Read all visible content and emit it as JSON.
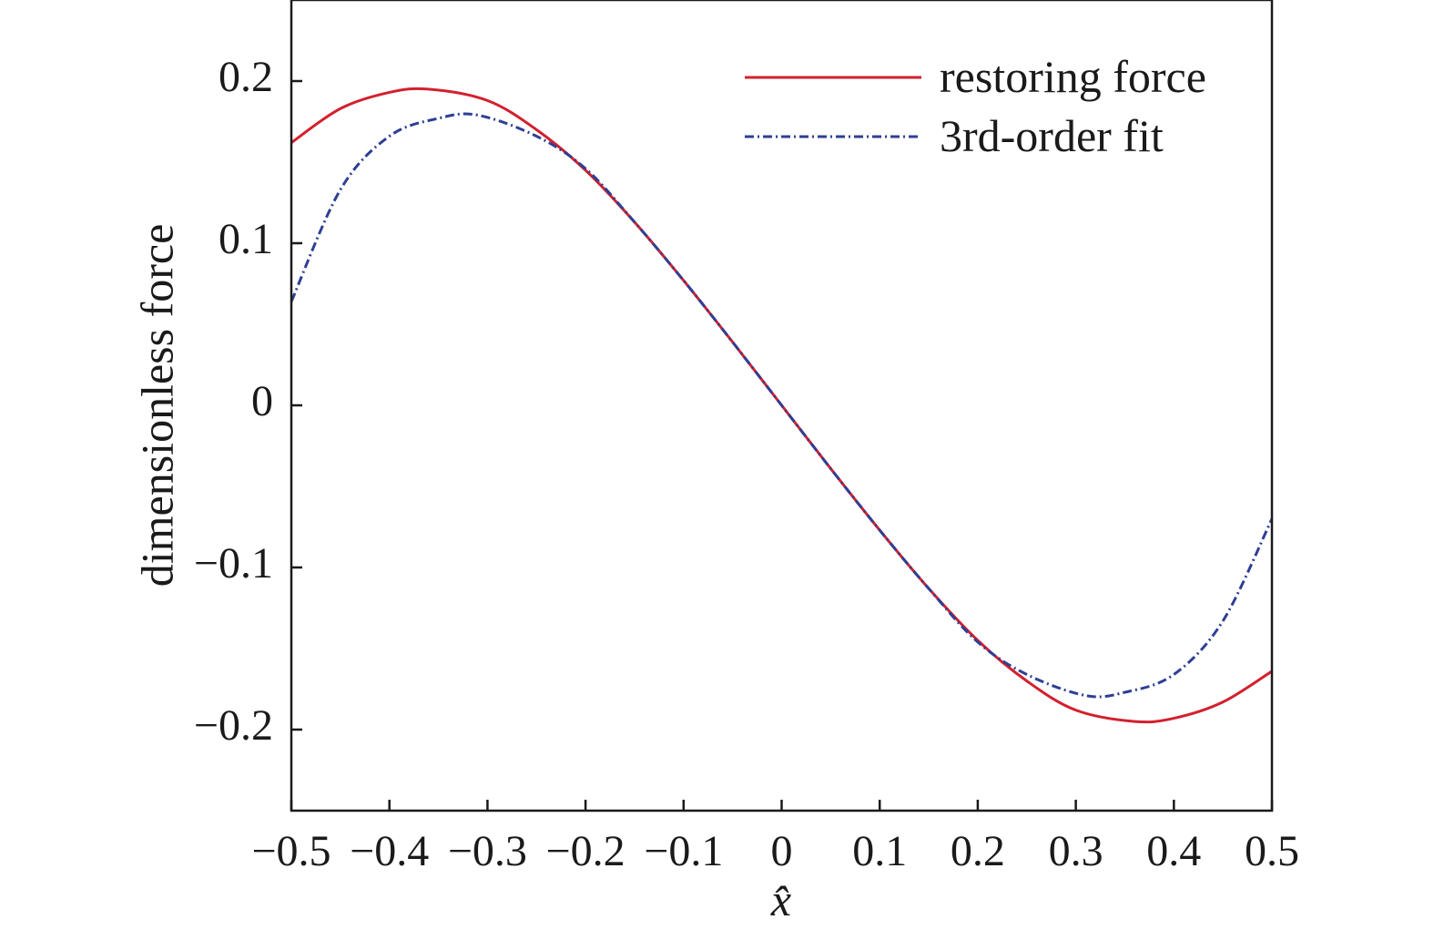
{
  "chart_data": {
    "type": "line",
    "xlabel": "x̂",
    "ylabel": "dimensionless force",
    "xlim": [
      -0.5,
      0.5
    ],
    "ylim": [
      -0.25,
      0.25
    ],
    "xticks": [
      -0.5,
      -0.4,
      -0.3,
      -0.2,
      -0.1,
      0,
      0.1,
      0.2,
      0.3,
      0.4,
      0.5
    ],
    "xtick_labels": [
      "−0.5",
      "−0.4",
      "−0.3",
      "−0.2",
      "−0.1",
      "0",
      "0.1",
      "0.2",
      "0.3",
      "0.4",
      "0.5"
    ],
    "yticks": [
      -0.2,
      -0.1,
      0,
      0.1,
      0.2
    ],
    "ytick_labels": [
      "−0.2",
      "−0.1",
      "0",
      "0.1",
      "0.2"
    ],
    "grid": false,
    "legend_position": "top-right",
    "series": [
      {
        "name": "restoring force",
        "color": "#d3202e",
        "dash": "solid",
        "x": [
          -0.5,
          -0.45,
          -0.4,
          -0.36,
          -0.3,
          -0.25,
          -0.2,
          -0.15,
          -0.1,
          -0.05,
          0,
          0.05,
          0.1,
          0.15,
          0.2,
          0.25,
          0.3,
          0.36,
          0.4,
          0.45,
          0.5
        ],
        "y": [
          0.162,
          0.183,
          0.193,
          0.195,
          0.188,
          0.17,
          0.145,
          0.113,
          0.077,
          0.039,
          0.0,
          -0.039,
          -0.077,
          -0.113,
          -0.145,
          -0.17,
          -0.188,
          -0.195,
          -0.193,
          -0.183,
          -0.164
        ]
      },
      {
        "name": "3rd-order fit",
        "color": "#2e3f93",
        "dash": "dashdot",
        "x": [
          -0.5,
          -0.45,
          -0.4,
          -0.35,
          -0.31,
          -0.25,
          -0.2,
          -0.15,
          -0.1,
          -0.05,
          0,
          0.05,
          0.1,
          0.15,
          0.2,
          0.25,
          0.31,
          0.35,
          0.4,
          0.45,
          0.5
        ],
        "y": [
          0.064,
          0.133,
          0.166,
          0.177,
          0.179,
          0.166,
          0.146,
          0.113,
          0.077,
          0.039,
          0.0,
          -0.039,
          -0.077,
          -0.113,
          -0.146,
          -0.166,
          -0.179,
          -0.177,
          -0.166,
          -0.133,
          -0.07
        ]
      }
    ]
  }
}
